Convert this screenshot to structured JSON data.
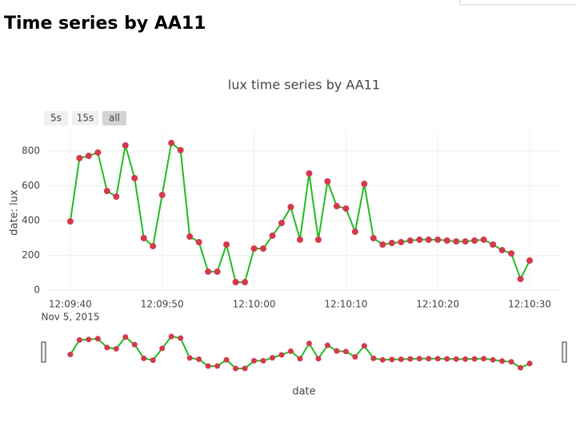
{
  "page_title": "Time series by AA11",
  "chart_data": {
    "type": "line",
    "title": "lux time series by AA11",
    "xlabel": "date",
    "ylabel": "date: lux",
    "range_buttons": [
      "5s",
      "15s",
      "all"
    ],
    "active_button": 2,
    "x": [
      "2015-11-05T12:09:40",
      "2015-11-05T12:09:41",
      "2015-11-05T12:09:42",
      "2015-11-05T12:09:43",
      "2015-11-05T12:09:44",
      "2015-11-05T12:09:45",
      "2015-11-05T12:09:46",
      "2015-11-05T12:09:47",
      "2015-11-05T12:09:48",
      "2015-11-05T12:09:49",
      "2015-11-05T12:09:50",
      "2015-11-05T12:09:51",
      "2015-11-05T12:09:52",
      "2015-11-05T12:09:53",
      "2015-11-05T12:09:54",
      "2015-11-05T12:09:55",
      "2015-11-05T12:09:56",
      "2015-11-05T12:09:57",
      "2015-11-05T12:09:58",
      "2015-11-05T12:09:59",
      "2015-11-05T12:10:00",
      "2015-11-05T12:10:01",
      "2015-11-05T12:10:02",
      "2015-11-05T12:10:03",
      "2015-11-05T12:10:04",
      "2015-11-05T12:10:05",
      "2015-11-05T12:10:06",
      "2015-11-05T12:10:07",
      "2015-11-05T12:10:08",
      "2015-11-05T12:10:09",
      "2015-11-05T12:10:10",
      "2015-11-05T12:10:11",
      "2015-11-05T12:10:12",
      "2015-11-05T12:10:13",
      "2015-11-05T12:10:14",
      "2015-11-05T12:10:15",
      "2015-11-05T12:10:16",
      "2015-11-05T12:10:17",
      "2015-11-05T12:10:18",
      "2015-11-05T12:10:19",
      "2015-11-05T12:10:20",
      "2015-11-05T12:10:21",
      "2015-11-05T12:10:22",
      "2015-11-05T12:10:23",
      "2015-11-05T12:10:24",
      "2015-11-05T12:10:25",
      "2015-11-05T12:10:26",
      "2015-11-05T12:10:27",
      "2015-11-05T12:10:28",
      "2015-11-05T12:10:29",
      "2015-11-05T12:10:30"
    ],
    "values": [
      395,
      759,
      772,
      791,
      570,
      538,
      832,
      644,
      299,
      253,
      547,
      846,
      805,
      308,
      276,
      106,
      106,
      262,
      46,
      46,
      239,
      239,
      313,
      386,
      478,
      290,
      671,
      290,
      625,
      483,
      469,
      336,
      611,
      299,
      262,
      271,
      276,
      285,
      290,
      290,
      290,
      285,
      280,
      280,
      285,
      290,
      262,
      230,
      211,
      64,
      170
    ],
    "color": "#22bb22",
    "marker_color": "#d4394e",
    "xlim": [
      "2015-11-05T12:09:37.4",
      "2015-11-05T12:10:33.3"
    ],
    "xticks": [
      {
        "value": "2015-11-05T12:09:40",
        "label": "12:09:40"
      },
      {
        "value": "2015-11-05T12:09:50",
        "label": "12:09:50"
      },
      {
        "value": "2015-11-05T12:10:00",
        "label": "12:10:00"
      },
      {
        "value": "2015-11-05T12:10:10",
        "label": "12:10:10"
      },
      {
        "value": "2015-11-05T12:10:20",
        "label": "12:10:20"
      },
      {
        "value": "2015-11-05T12:10:30",
        "label": "12:10:30"
      }
    ],
    "xtick_date_label": "Nov 5, 2015",
    "ylim": [
      0,
      910
    ],
    "yticks": [
      0,
      200,
      400,
      600,
      800
    ],
    "grid": true
  }
}
